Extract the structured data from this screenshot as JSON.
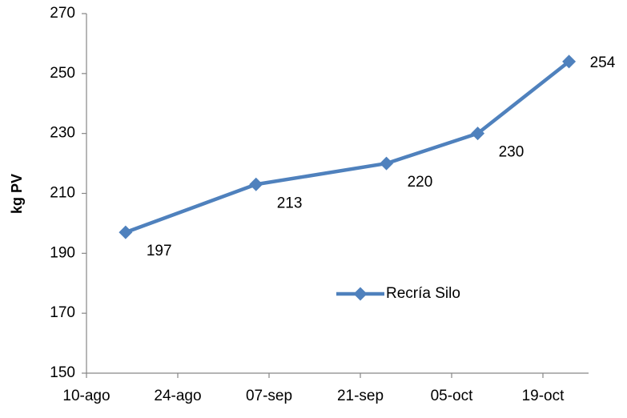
{
  "chart_data": {
    "type": "line",
    "y_label": "kg PV",
    "x": [
      "08-16",
      "09-05",
      "09-25",
      "10-09",
      "10-23"
    ],
    "series": [
      {
        "name": "Recría Silo",
        "color": "#4f81bd",
        "values": [
          197,
          213,
          220,
          230,
          254
        ]
      }
    ],
    "xlim": [
      "08-10",
      "10-26"
    ],
    "xticks": [
      {
        "value": "08-10",
        "label": "10-ago"
      },
      {
        "value": "08-24",
        "label": "24-ago"
      },
      {
        "value": "09-07",
        "label": "07-sep"
      },
      {
        "value": "09-21",
        "label": "21-sep"
      },
      {
        "value": "10-05",
        "label": "05-oct"
      },
      {
        "value": "10-19",
        "label": "19-oct"
      }
    ],
    "ylim": [
      150,
      270
    ],
    "yticks": [
      150,
      170,
      190,
      210,
      230,
      250,
      270
    ],
    "grid": false,
    "legend": "center"
  }
}
